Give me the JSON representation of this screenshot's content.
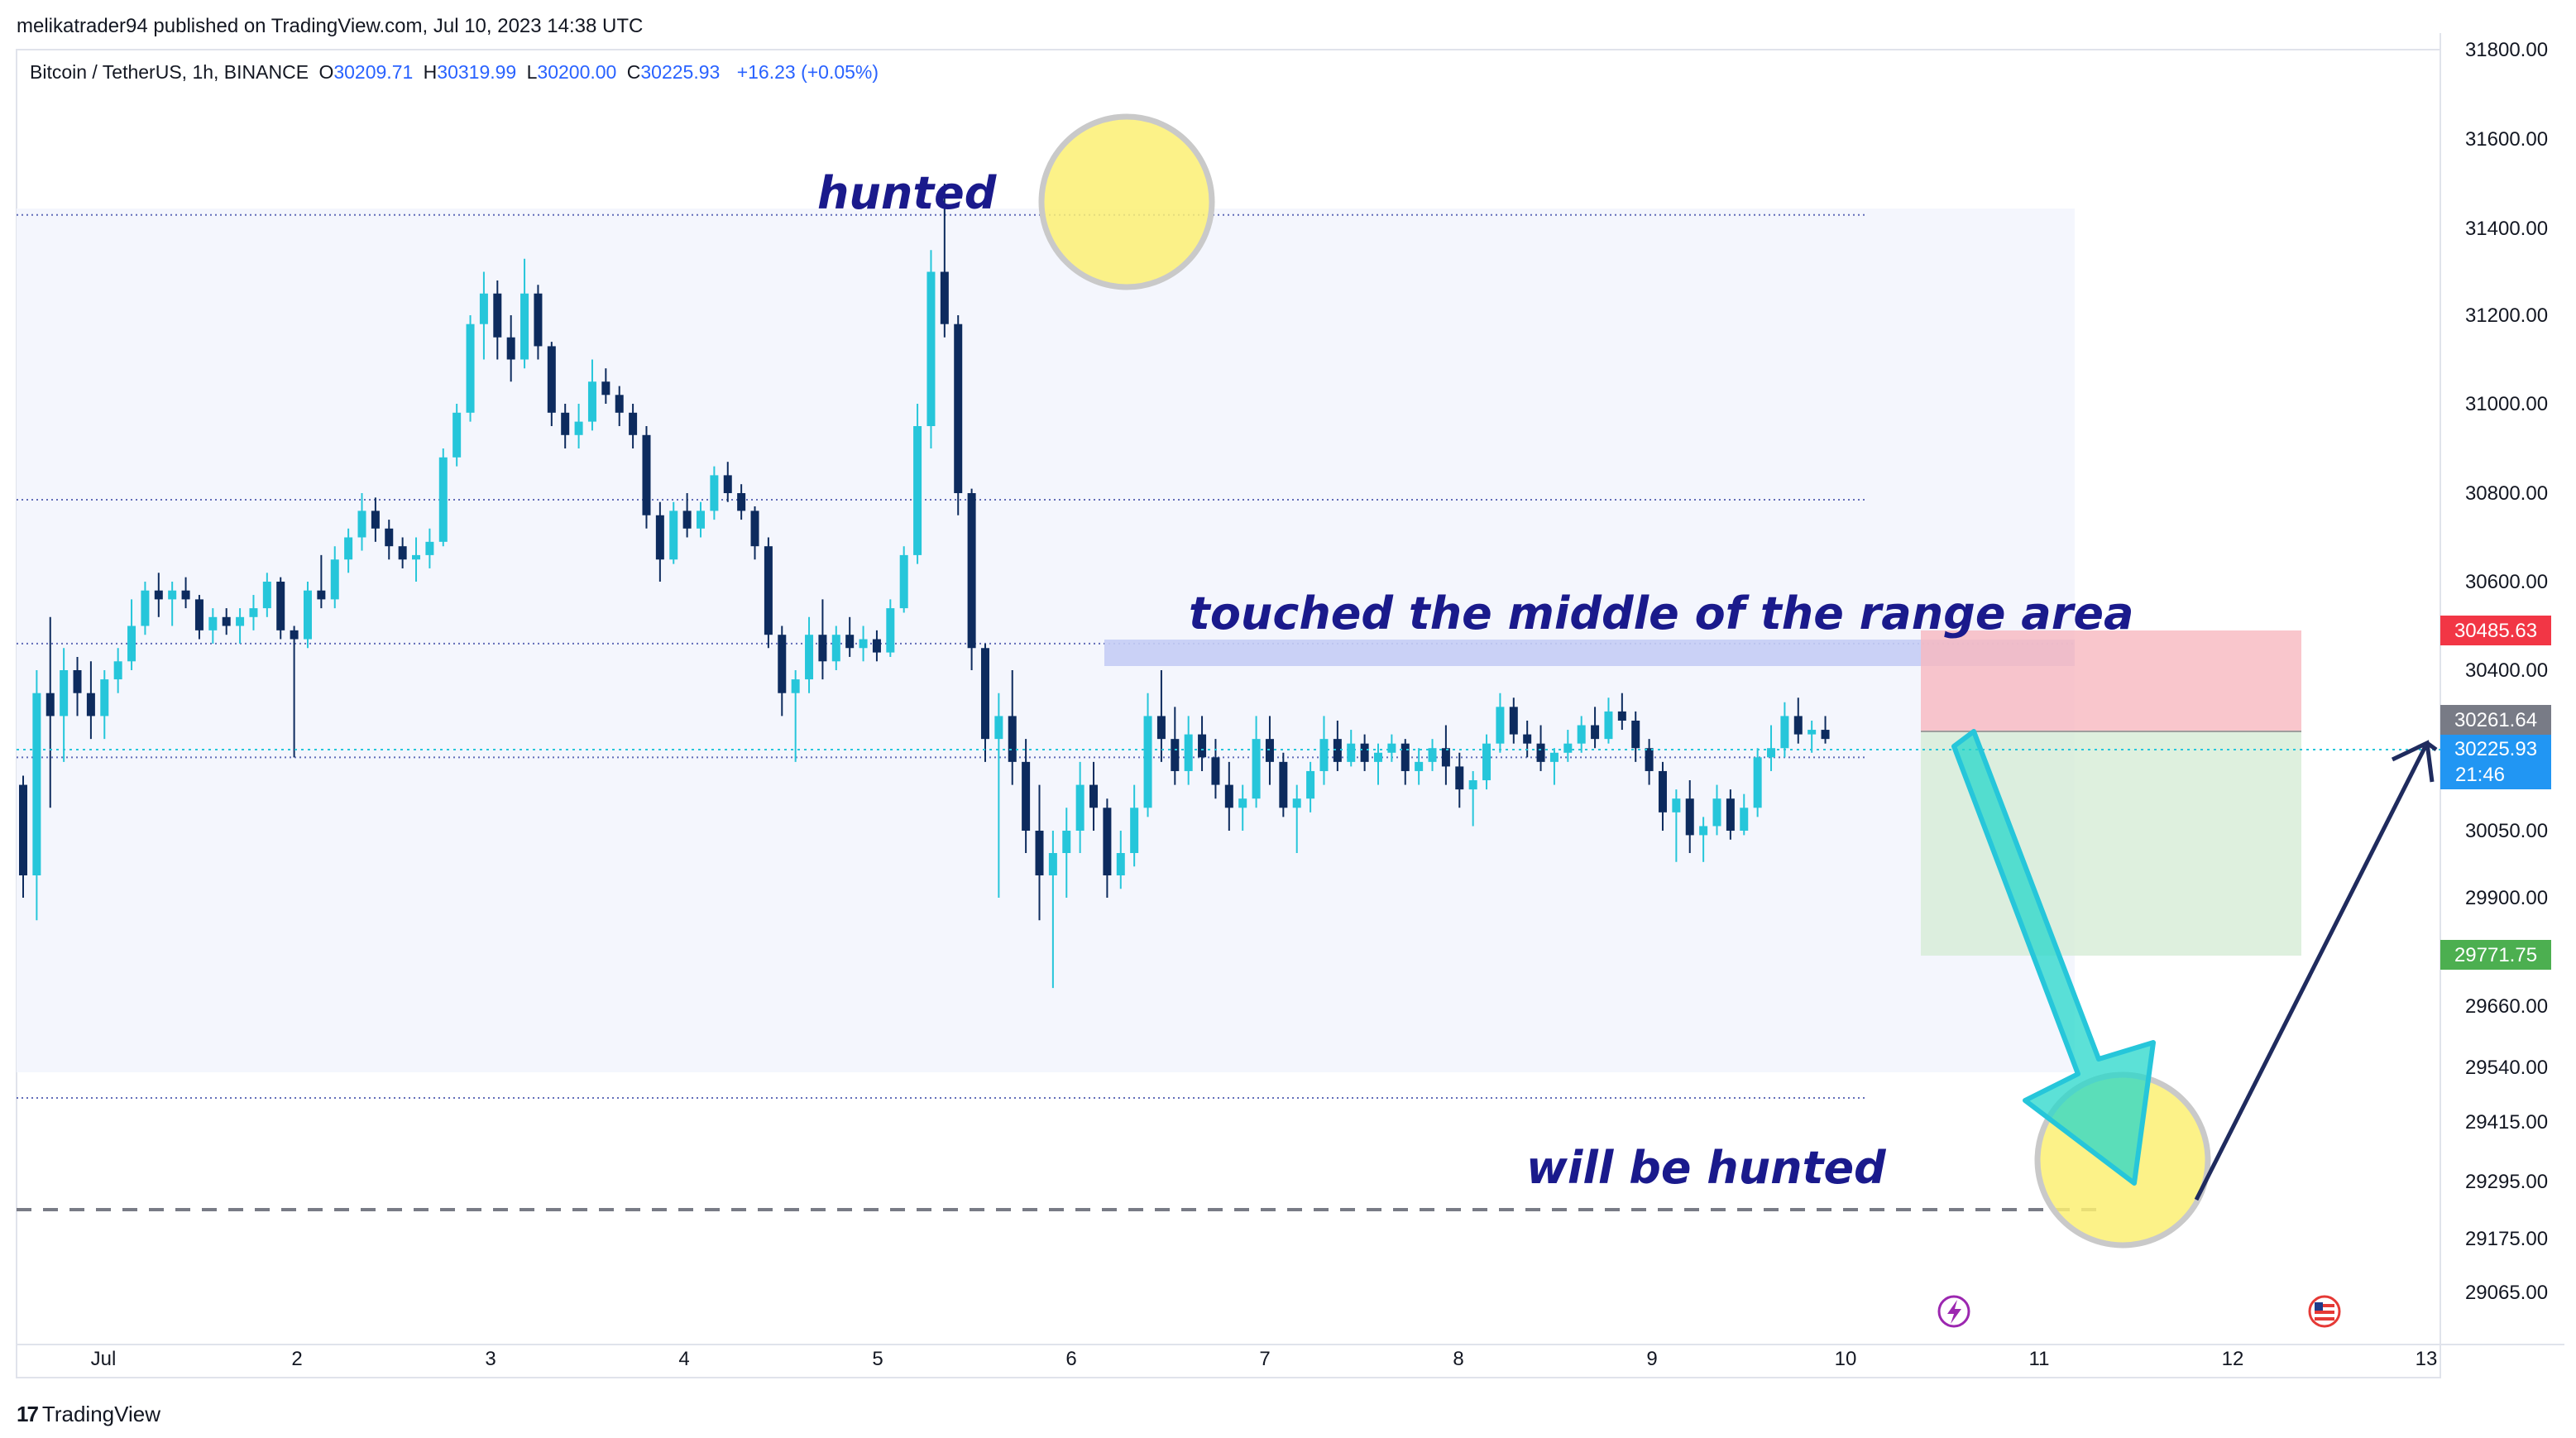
{
  "header": {
    "published": "melikatrader94 published on TradingView.com, Jul 10, 2023 14:38 UTC"
  },
  "legend": {
    "symbol": "Bitcoin / TetherUS, 1h, BINANCE",
    "o_label": "O",
    "o_value": "30209.71",
    "h_label": "H",
    "h_value": "30319.99",
    "l_label": "L",
    "l_value": "30200.00",
    "c_label": "C",
    "c_value": "30225.93",
    "change": "+16.23 (+0.05%)"
  },
  "footer": {
    "brand": "TradingView",
    "logo": "17"
  },
  "colors": {
    "up": "#26c6da",
    "down": "#0d2b5e",
    "range_bg": "#f4f6fd",
    "stop_zone": "#f8b8bf",
    "target_zone": "#d6ecd6",
    "price_badge": "#2196f3",
    "stop_badge": "#f23645",
    "target_badge": "#4caf50"
  },
  "chart_data": {
    "type": "candlestick",
    "symbol": "Bitcoin / TetherUS, 1h, BINANCE",
    "x_ticks": [
      "Jul",
      "2",
      "3",
      "4",
      "5",
      "6",
      "7",
      "8",
      "9",
      "10",
      "11",
      "12",
      "13"
    ],
    "y_ticks": [
      "31800.00",
      "31600.00",
      "31400.00",
      "31200.00",
      "31000.00",
      "30800.00",
      "30600.00",
      "30400.00",
      "30050.00",
      "29900.00",
      "29660.00",
      "29540.00",
      "29415.00",
      "29295.00",
      "29175.00",
      "29065.00"
    ],
    "ylim": [
      29000,
      31850
    ],
    "price_tags": {
      "stop": "30485.63",
      "entry": "30261.64",
      "last": "30225.93",
      "countdown": "21:46",
      "target": "29771.75"
    },
    "levels": [
      31430,
      30785,
      30460,
      30210,
      29470
    ],
    "hunt_level": 29220,
    "annotations": {
      "top": "hunted",
      "middle": "touched the middle of the range area",
      "bottom": "will be hunted"
    },
    "candles": [
      [
        0.0,
        30150,
        30170,
        29900,
        29950
      ],
      [
        0.07,
        29950,
        30400,
        29850,
        30350
      ],
      [
        0.14,
        30350,
        30520,
        30100,
        30300
      ],
      [
        0.21,
        30300,
        30450,
        30200,
        30400
      ],
      [
        0.28,
        30400,
        30430,
        30300,
        30350
      ],
      [
        0.35,
        30350,
        30420,
        30250,
        30300
      ],
      [
        0.42,
        30300,
        30400,
        30250,
        30380
      ],
      [
        0.49,
        30380,
        30450,
        30350,
        30420
      ],
      [
        0.56,
        30420,
        30560,
        30400,
        30500
      ],
      [
        0.63,
        30500,
        30600,
        30480,
        30580
      ],
      [
        0.7,
        30580,
        30620,
        30520,
        30560
      ],
      [
        0.77,
        30560,
        30600,
        30500,
        30580
      ],
      [
        0.84,
        30580,
        30610,
        30540,
        30560
      ],
      [
        0.91,
        30560,
        30570,
        30470,
        30490
      ],
      [
        0.98,
        30490,
        30540,
        30460,
        30520
      ],
      [
        1.05,
        30520,
        30540,
        30480,
        30500
      ],
      [
        1.12,
        30500,
        30540,
        30460,
        30520
      ],
      [
        1.19,
        30520,
        30570,
        30490,
        30540
      ],
      [
        1.26,
        30540,
        30620,
        30520,
        30600
      ],
      [
        1.33,
        30600,
        30610,
        30470,
        30490
      ],
      [
        1.4,
        30490,
        30500,
        30210,
        30470
      ],
      [
        1.47,
        30470,
        30600,
        30450,
        30580
      ],
      [
        1.54,
        30580,
        30660,
        30540,
        30560
      ],
      [
        1.61,
        30560,
        30680,
        30540,
        30650
      ],
      [
        1.68,
        30650,
        30720,
        30620,
        30700
      ],
      [
        1.75,
        30700,
        30800,
        30670,
        30760
      ],
      [
        1.82,
        30760,
        30790,
        30690,
        30720
      ],
      [
        1.89,
        30720,
        30740,
        30650,
        30680
      ],
      [
        1.96,
        30680,
        30700,
        30630,
        30650
      ],
      [
        2.03,
        30650,
        30700,
        30600,
        30660
      ],
      [
        2.1,
        30660,
        30720,
        30630,
        30690
      ],
      [
        2.17,
        30690,
        30900,
        30680,
        30880
      ],
      [
        2.24,
        30880,
        31000,
        30860,
        30980
      ],
      [
        2.31,
        30980,
        31200,
        30960,
        31180
      ],
      [
        2.38,
        31180,
        31300,
        31100,
        31250
      ],
      [
        2.45,
        31250,
        31280,
        31100,
        31150
      ],
      [
        2.52,
        31150,
        31200,
        31050,
        31100
      ],
      [
        2.59,
        31100,
        31330,
        31080,
        31250
      ],
      [
        2.66,
        31250,
        31270,
        31100,
        31130
      ],
      [
        2.73,
        31130,
        31140,
        30950,
        30980
      ],
      [
        2.8,
        30980,
        31000,
        30900,
        30930
      ],
      [
        2.87,
        30930,
        31000,
        30900,
        30960
      ],
      [
        2.94,
        30960,
        31100,
        30940,
        31050
      ],
      [
        3.01,
        31050,
        31080,
        31000,
        31020
      ],
      [
        3.08,
        31020,
        31040,
        30950,
        30980
      ],
      [
        3.15,
        30980,
        31000,
        30900,
        30930
      ],
      [
        3.22,
        30930,
        30950,
        30720,
        30750
      ],
      [
        3.29,
        30750,
        30780,
        30600,
        30650
      ],
      [
        3.36,
        30650,
        30780,
        30640,
        30760
      ],
      [
        3.43,
        30760,
        30800,
        30700,
        30720
      ],
      [
        3.5,
        30720,
        30780,
        30700,
        30760
      ],
      [
        3.57,
        30760,
        30860,
        30740,
        30840
      ],
      [
        3.64,
        30840,
        30870,
        30780,
        30800
      ],
      [
        3.71,
        30800,
        30820,
        30740,
        30760
      ],
      [
        3.78,
        30760,
        30770,
        30650,
        30680
      ],
      [
        3.85,
        30680,
        30700,
        30450,
        30480
      ],
      [
        3.92,
        30480,
        30500,
        30300,
        30350
      ],
      [
        3.99,
        30350,
        30400,
        30200,
        30380
      ],
      [
        4.06,
        30380,
        30520,
        30350,
        30480
      ],
      [
        4.13,
        30480,
        30560,
        30380,
        30420
      ],
      [
        4.2,
        30420,
        30500,
        30400,
        30480
      ],
      [
        4.27,
        30480,
        30520,
        30430,
        30450
      ],
      [
        4.34,
        30450,
        30500,
        30420,
        30470
      ],
      [
        4.41,
        30470,
        30490,
        30420,
        30440
      ],
      [
        4.48,
        30440,
        30560,
        30430,
        30540
      ],
      [
        4.55,
        30540,
        30680,
        30530,
        30660
      ],
      [
        4.62,
        30660,
        31000,
        30640,
        30950
      ],
      [
        4.69,
        30950,
        31350,
        30900,
        31300
      ],
      [
        4.76,
        31300,
        31500,
        31150,
        31180
      ],
      [
        4.83,
        31180,
        31200,
        30750,
        30800
      ],
      [
        4.9,
        30800,
        30810,
        30400,
        30450
      ],
      [
        4.97,
        30450,
        30460,
        30200,
        30250
      ],
      [
        5.04,
        30250,
        30350,
        29900,
        30300
      ],
      [
        5.11,
        30300,
        30400,
        30150,
        30200
      ],
      [
        5.18,
        30200,
        30250,
        30000,
        30050
      ],
      [
        5.25,
        30050,
        30150,
        29850,
        29950
      ],
      [
        5.32,
        29950,
        30050,
        29700,
        30000
      ],
      [
        5.39,
        30000,
        30100,
        29900,
        30050
      ],
      [
        5.46,
        30050,
        30200,
        30000,
        30150
      ],
      [
        5.53,
        30150,
        30200,
        30050,
        30100
      ],
      [
        5.6,
        30100,
        30120,
        29900,
        29950
      ],
      [
        5.67,
        29950,
        30050,
        29920,
        30000
      ],
      [
        5.74,
        30000,
        30150,
        29970,
        30100
      ],
      [
        5.81,
        30100,
        30350,
        30080,
        30300
      ],
      [
        5.88,
        30300,
        30400,
        30200,
        30250
      ],
      [
        5.95,
        30250,
        30320,
        30150,
        30180
      ],
      [
        6.02,
        30180,
        30300,
        30150,
        30260
      ],
      [
        6.09,
        30260,
        30300,
        30180,
        30210
      ],
      [
        6.16,
        30210,
        30250,
        30120,
        30150
      ],
      [
        6.23,
        30150,
        30200,
        30050,
        30100
      ],
      [
        6.3,
        30100,
        30150,
        30050,
        30120
      ],
      [
        6.37,
        30120,
        30300,
        30100,
        30250
      ],
      [
        6.44,
        30250,
        30300,
        30150,
        30200
      ],
      [
        6.51,
        30200,
        30220,
        30080,
        30100
      ],
      [
        6.58,
        30100,
        30150,
        30000,
        30120
      ],
      [
        6.65,
        30120,
        30200,
        30090,
        30180
      ],
      [
        6.72,
        30180,
        30300,
        30150,
        30250
      ],
      [
        6.79,
        30250,
        30290,
        30180,
        30200
      ],
      [
        6.86,
        30200,
        30270,
        30190,
        30240
      ],
      [
        6.93,
        30240,
        30260,
        30180,
        30200
      ],
      [
        7.0,
        30200,
        30240,
        30150,
        30220
      ],
      [
        7.07,
        30220,
        30260,
        30200,
        30240
      ],
      [
        7.14,
        30240,
        30250,
        30150,
        30180
      ],
      [
        7.21,
        30180,
        30230,
        30150,
        30200
      ],
      [
        7.28,
        30200,
        30250,
        30180,
        30230
      ],
      [
        7.35,
        30230,
        30280,
        30150,
        30190
      ],
      [
        7.42,
        30190,
        30220,
        30100,
        30140
      ],
      [
        7.49,
        30140,
        30180,
        30060,
        30160
      ],
      [
        7.56,
        30160,
        30260,
        30140,
        30240
      ],
      [
        7.63,
        30240,
        30350,
        30220,
        30320
      ],
      [
        7.7,
        30320,
        30340,
        30240,
        30260
      ],
      [
        7.77,
        30260,
        30290,
        30210,
        30240
      ],
      [
        7.84,
        30240,
        30280,
        30180,
        30200
      ],
      [
        7.91,
        30200,
        30230,
        30150,
        30220
      ],
      [
        7.98,
        30220,
        30270,
        30200,
        30240
      ],
      [
        8.05,
        30240,
        30300,
        30220,
        30280
      ],
      [
        8.12,
        30280,
        30320,
        30230,
        30250
      ],
      [
        8.19,
        30250,
        30340,
        30240,
        30310
      ],
      [
        8.26,
        30310,
        30350,
        30270,
        30290
      ],
      [
        8.33,
        30290,
        30310,
        30200,
        30230
      ],
      [
        8.4,
        30230,
        30250,
        30150,
        30180
      ],
      [
        8.47,
        30180,
        30200,
        30050,
        30090
      ],
      [
        8.54,
        30090,
        30140,
        29980,
        30120
      ],
      [
        8.61,
        30120,
        30160,
        30000,
        30040
      ],
      [
        8.68,
        30040,
        30080,
        29980,
        30060
      ],
      [
        8.75,
        30060,
        30150,
        30040,
        30120
      ],
      [
        8.82,
        30120,
        30140,
        30030,
        30050
      ],
      [
        8.89,
        30050,
        30130,
        30040,
        30100
      ],
      [
        8.96,
        30100,
        30230,
        30080,
        30210
      ],
      [
        9.03,
        30210,
        30280,
        30180,
        30230
      ],
      [
        9.1,
        30230,
        30330,
        30210,
        30300
      ],
      [
        9.17,
        30300,
        30340,
        30240,
        30260
      ],
      [
        9.24,
        30260,
        30290,
        30220,
        30270
      ],
      [
        9.31,
        30270,
        30300,
        30240,
        30250
      ]
    ]
  }
}
